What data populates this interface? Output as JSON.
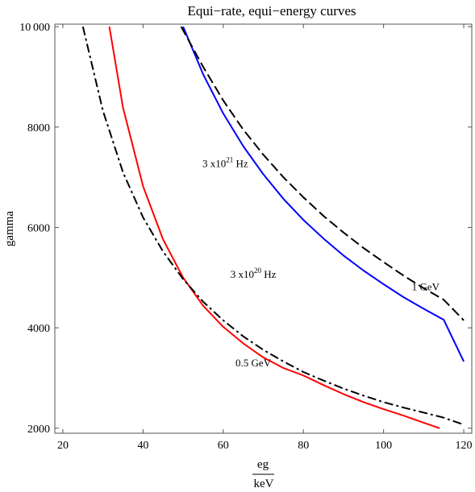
{
  "chart_data": {
    "type": "line",
    "title": "Equi−rate, equi−energy curves",
    "xlabel_top": "eg",
    "xlabel_bottom": "keV",
    "ylabel": "gamma",
    "xlim": [
      18,
      122
    ],
    "ylim": [
      1900,
      10050
    ],
    "xticks": [
      20,
      40,
      60,
      80,
      100,
      120
    ],
    "yticks": [
      2000,
      4000,
      6000,
      8000,
      10000
    ],
    "ytick_labels": [
      "2000",
      "4000",
      "6000",
      "8000",
      "10 000"
    ],
    "grid": false,
    "series": [
      {
        "name": "3 x10^21 Hz",
        "color": "#0000ff",
        "style": "solid",
        "x": [
          50,
          55,
          60,
          65,
          70,
          75,
          80,
          85,
          90,
          95,
          100,
          105,
          110,
          115,
          120
        ],
        "y": [
          10000,
          9050,
          8270,
          7620,
          7060,
          6570,
          6150,
          5780,
          5440,
          5140,
          4870,
          4610,
          4380,
          4160,
          3330
        ]
      },
      {
        "name": "3 x10^20 Hz",
        "color": "#ff0000",
        "style": "solid",
        "x": [
          31.6,
          35,
          40,
          45,
          50,
          55,
          60,
          65,
          70,
          75,
          80,
          85,
          90,
          95,
          100,
          105,
          110,
          114
        ],
        "y": [
          10000,
          8390,
          6820,
          5760,
          5000,
          4440,
          4020,
          3690,
          3410,
          3200,
          3050,
          2860,
          2680,
          2520,
          2380,
          2250,
          2110,
          2000
        ]
      },
      {
        "name": "1 GeV",
        "color": "#000000",
        "style": "dashed",
        "x": [
          49.5,
          55,
          60,
          65,
          70,
          75,
          80,
          85,
          90,
          95,
          100,
          105,
          110,
          115,
          120
        ],
        "y": [
          10000,
          9200,
          8530,
          7950,
          7450,
          7000,
          6600,
          6230,
          5900,
          5590,
          5310,
          5040,
          4790,
          4560,
          4150
        ]
      },
      {
        "name": "0.5 GeV",
        "color": "#000000",
        "style": "dashdot",
        "x": [
          25,
          30,
          35,
          40,
          45,
          50,
          55,
          60,
          65,
          70,
          75,
          80,
          85,
          90,
          95,
          100,
          105,
          110,
          115,
          120
        ],
        "y": [
          10000,
          8320,
          7100,
          6200,
          5520,
          4970,
          4520,
          4150,
          3830,
          3560,
          3330,
          3120,
          2950,
          2790,
          2650,
          2520,
          2410,
          2310,
          2210,
          2070
        ]
      }
    ],
    "annotations": [
      {
        "base": "3 x10",
        "exp": "21",
        "suffix": " Hz",
        "x": 60.5,
        "y": 7200
      },
      {
        "base": "3 x10",
        "exp": "20",
        "suffix": " Hz",
        "x": 67.5,
        "y": 5000
      },
      {
        "base": "1 GeV",
        "exp": "",
        "suffix": "",
        "x": 110.5,
        "y": 4750
      },
      {
        "base": "0.5 GeV",
        "exp": "",
        "suffix": "",
        "x": 67.5,
        "y": 3230
      }
    ]
  }
}
